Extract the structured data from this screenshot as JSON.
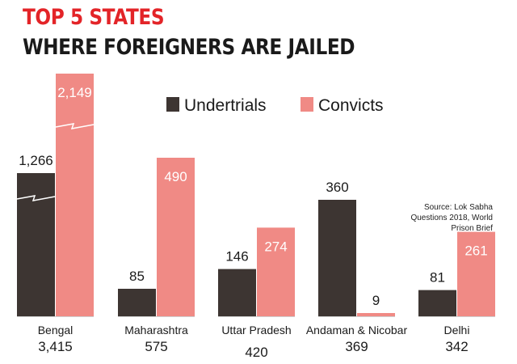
{
  "title": "TOP 5 STATES",
  "subtitle": "WHERE FOREIGNERS ARE JAILED",
  "source_lines": [
    "Source: Lok Sabha",
    "Questions 2018, World",
    "Prison Brief"
  ],
  "colors": {
    "title_accent": "#e32428",
    "title_main": "#1a1a1a",
    "undertrials": "#3d3532",
    "convicts": "#f08a85",
    "text": "#1a1a1a"
  },
  "chart_data": {
    "type": "bar",
    "categories": [
      "Bengal",
      "Maharashtra",
      "Uttar Pradesh",
      "Andaman & Nicobar",
      "Delhi"
    ],
    "totals": [
      "3,415",
      "575",
      "420",
      "369",
      "342"
    ],
    "series": [
      {
        "name": "Undertrials",
        "values": [
          1266,
          85,
          146,
          360,
          81
        ],
        "labels": [
          "1,266",
          "85",
          "146",
          "360",
          "81"
        ],
        "color": "#3d3532"
      },
      {
        "name": "Convicts",
        "values": [
          2149,
          490,
          274,
          9,
          261
        ],
        "labels": [
          "2,149",
          "490",
          "274",
          "9",
          "261"
        ],
        "color": "#f08a85"
      }
    ],
    "legend": [
      "Undertrials",
      "Convicts"
    ],
    "legend_position": "top-right",
    "broken_axis_bars": [
      0
    ],
    "grid": false
  }
}
